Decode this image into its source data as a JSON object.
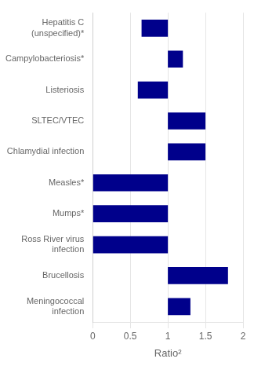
{
  "chart_data": {
    "type": "bar",
    "orientation": "horizontal",
    "categories": [
      "Meningococcal\ninfection",
      "Brucellosis",
      "Ross River virus\ninfection",
      "Mumps*",
      "Measles*",
      "Chlamydial infection",
      "SLTEC/VTEC",
      "Listeriosis",
      "Campylobacteriosis*",
      "Hepatitis C\n(unspecified)*"
    ],
    "values": [
      [
        1.0,
        1.3
      ],
      [
        1.0,
        1.8
      ],
      [
        0.0,
        1.0
      ],
      [
        0.0,
        1.0
      ],
      [
        0.0,
        1.0
      ],
      [
        1.0,
        1.5
      ],
      [
        1.0,
        1.5
      ],
      [
        0.6,
        1.0
      ],
      [
        1.0,
        1.2
      ],
      [
        0.65,
        1.0
      ]
    ],
    "color": "#00008B",
    "xlabel": "Ratio²",
    "xlim": [
      0,
      2.0
    ],
    "xticks": [
      0,
      0.5,
      1,
      1.5,
      2
    ],
    "grid": true
  }
}
